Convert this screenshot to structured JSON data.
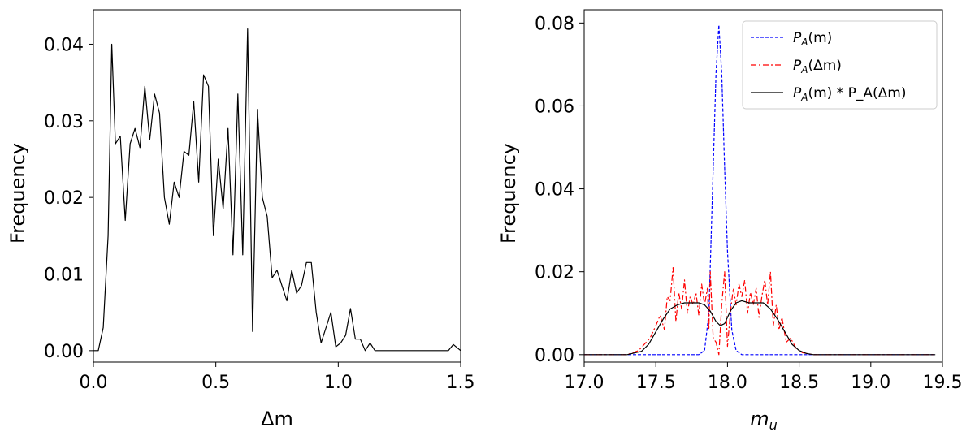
{
  "chart_data": [
    {
      "type": "line",
      "title": "",
      "xlabel": "Δm",
      "ylabel": "Frequency",
      "xlim": [
        0.0,
        1.5
      ],
      "ylim": [
        -0.0015,
        0.0445
      ],
      "xticks": [
        0.0,
        0.5,
        1.0,
        1.5
      ],
      "xtick_labels": [
        "0.0",
        "0.5",
        "1.0",
        "1.5"
      ],
      "yticks": [
        0.0,
        0.01,
        0.02,
        0.03,
        0.04
      ],
      "ytick_labels": [
        "0.00",
        "0.01",
        "0.02",
        "0.03",
        "0.04"
      ],
      "grid": false,
      "series": [
        {
          "color": "#000000",
          "style": "solid",
          "x": [
            0.0,
            0.02,
            0.04,
            0.06,
            0.075,
            0.09,
            0.11,
            0.13,
            0.15,
            0.17,
            0.19,
            0.21,
            0.23,
            0.25,
            0.27,
            0.29,
            0.31,
            0.33,
            0.35,
            0.37,
            0.39,
            0.41,
            0.43,
            0.45,
            0.47,
            0.49,
            0.51,
            0.53,
            0.55,
            0.57,
            0.59,
            0.61,
            0.63,
            0.65,
            0.67,
            0.69,
            0.71,
            0.73,
            0.75,
            0.77,
            0.79,
            0.81,
            0.83,
            0.85,
            0.87,
            0.89,
            0.91,
            0.93,
            0.95,
            0.97,
            0.99,
            1.01,
            1.03,
            1.05,
            1.07,
            1.09,
            1.11,
            1.13,
            1.15,
            1.17,
            1.19,
            1.21,
            1.23,
            1.3,
            1.4,
            1.45,
            1.47,
            1.5
          ],
          "y": [
            0.0,
            0.0,
            0.003,
            0.015,
            0.04,
            0.027,
            0.028,
            0.017,
            0.027,
            0.029,
            0.0265,
            0.0345,
            0.0275,
            0.0335,
            0.031,
            0.02,
            0.0165,
            0.022,
            0.02,
            0.026,
            0.0255,
            0.0325,
            0.022,
            0.036,
            0.0345,
            0.015,
            0.025,
            0.0185,
            0.029,
            0.0125,
            0.0335,
            0.0125,
            0.042,
            0.0025,
            0.0315,
            0.02,
            0.0175,
            0.0095,
            0.0105,
            0.0085,
            0.0065,
            0.0105,
            0.0075,
            0.0085,
            0.0115,
            0.0115,
            0.005,
            0.001,
            0.003,
            0.005,
            0.0005,
            0.001,
            0.002,
            0.0055,
            0.0015,
            0.0015,
            0.0,
            0.001,
            0.0,
            0.0,
            0.0,
            0.0,
            0.0,
            0.0,
            0.0,
            0.0,
            0.0008,
            0.0
          ]
        }
      ]
    },
    {
      "type": "line",
      "title": "",
      "xlabel": "m_u",
      "ylabel": "Frequency",
      "xlim": [
        17.0,
        19.5
      ],
      "ylim": [
        -0.0018,
        0.0832
      ],
      "xticks": [
        17.0,
        17.5,
        18.0,
        18.5,
        19.0,
        19.5
      ],
      "xtick_labels": [
        "17.0",
        "17.5",
        "18.0",
        "18.5",
        "19.0",
        "19.5"
      ],
      "yticks": [
        0.0,
        0.02,
        0.04,
        0.06,
        0.08
      ],
      "ytick_labels": [
        "0.00",
        "0.02",
        "0.04",
        "0.06",
        "0.08"
      ],
      "grid": false,
      "legend_position": "top-right",
      "series": [
        {
          "name": "P_A(m)",
          "color": "#0000ff",
          "style": "dashed",
          "x": [
            17.0,
            17.7,
            17.8,
            17.84,
            17.87,
            17.9,
            17.92,
            17.94,
            17.96,
            17.98,
            18.0,
            18.03,
            18.06,
            18.1,
            18.2,
            19.45
          ],
          "y": [
            0.0,
            0.0,
            0.0,
            0.001,
            0.01,
            0.045,
            0.068,
            0.0795,
            0.068,
            0.045,
            0.025,
            0.006,
            0.001,
            0.0,
            0.0,
            0.0
          ]
        },
        {
          "name": "P_A(Δm)",
          "color": "#ff0000",
          "style": "dashdot",
          "x": [
            17.0,
            17.3,
            17.38,
            17.42,
            17.46,
            17.5,
            17.53,
            17.56,
            17.58,
            17.6,
            17.62,
            17.64,
            17.66,
            17.68,
            17.7,
            17.72,
            17.74,
            17.76,
            17.78,
            17.8,
            17.82,
            17.84,
            17.86,
            17.87,
            17.88,
            17.9,
            17.92,
            17.94,
            17.96,
            17.98,
            18.0,
            18.02,
            18.04,
            18.06,
            18.08,
            18.1,
            18.12,
            18.14,
            18.16,
            18.18,
            18.2,
            18.22,
            18.24,
            18.26,
            18.28,
            18.3,
            18.32,
            18.34,
            18.36,
            18.38,
            18.41,
            18.44,
            18.48,
            18.52,
            18.6,
            19.45
          ],
          "y": [
            0.0,
            0.0,
            0.001,
            0.0025,
            0.004,
            0.007,
            0.0095,
            0.006,
            0.014,
            0.013,
            0.021,
            0.008,
            0.015,
            0.011,
            0.018,
            0.01,
            0.014,
            0.012,
            0.015,
            0.0095,
            0.017,
            0.012,
            0.016,
            0.006,
            0.02,
            0.004,
            0.003,
            0.0,
            0.012,
            0.02,
            0.002,
            0.01,
            0.016,
            0.012,
            0.017,
            0.014,
            0.018,
            0.01,
            0.015,
            0.012,
            0.016,
            0.009,
            0.014,
            0.018,
            0.012,
            0.02,
            0.007,
            0.012,
            0.006,
            0.009,
            0.003,
            0.004,
            0.0015,
            0.0005,
            0.0,
            0.0
          ]
        },
        {
          "name": "P_A(m) * P_A(Δm)",
          "color": "#000000",
          "style": "solid",
          "x": [
            17.0,
            17.3,
            17.4,
            17.45,
            17.5,
            17.55,
            17.6,
            17.65,
            17.7,
            17.75,
            17.8,
            17.84,
            17.88,
            17.92,
            17.95,
            17.98,
            18.02,
            18.06,
            18.1,
            18.15,
            18.2,
            18.25,
            18.3,
            18.35,
            18.4,
            18.45,
            18.5,
            18.55,
            18.6,
            19.45
          ],
          "y": [
            0.0,
            0.0,
            0.0008,
            0.0025,
            0.0055,
            0.0085,
            0.011,
            0.012,
            0.0125,
            0.0125,
            0.0125,
            0.012,
            0.0105,
            0.008,
            0.007,
            0.0075,
            0.0105,
            0.0125,
            0.013,
            0.0125,
            0.0125,
            0.0125,
            0.011,
            0.0085,
            0.0055,
            0.0025,
            0.001,
            0.0003,
            0.0,
            0.0
          ]
        }
      ]
    }
  ]
}
